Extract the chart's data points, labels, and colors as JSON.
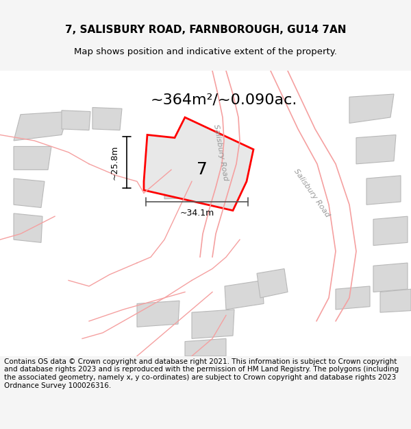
{
  "title": "7, SALISBURY ROAD, FARNBOROUGH, GU14 7AN",
  "subtitle": "Map shows position and indicative extent of the property.",
  "area_text": "~364m²/~0.090ac.",
  "width_label": "~34.1m",
  "height_label": "~25.8m",
  "label_7": "7",
  "footer": "Contains OS data © Crown copyright and database right 2021. This information is subject to Crown copyright and database rights 2023 and is reproduced with the permission of HM Land Registry. The polygons (including the associated geometry, namely x, y co-ordinates) are subject to Crown copyright and database rights 2023 Ordnance Survey 100026316.",
  "bg_color": "#f5f5f5",
  "map_bg": "#ffffff",
  "red_color": "#ff0000",
  "pink_color": "#f5a0a0",
  "gray_color": "#d0d0d0",
  "dark_gray": "#808080",
  "title_fontsize": 11,
  "subtitle_fontsize": 9.5,
  "footer_fontsize": 7.5
}
